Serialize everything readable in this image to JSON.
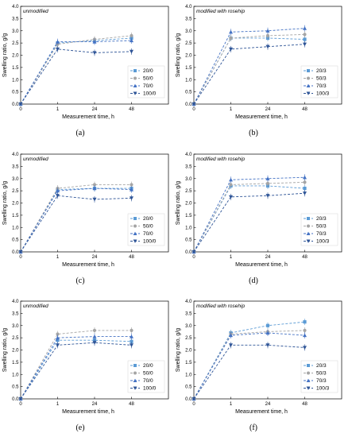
{
  "figure": {
    "panels": [
      {
        "letter": "(a)",
        "annotation": "unmodified"
      },
      {
        "letter": "(b)",
        "annotation": "modified with rosehip"
      },
      {
        "letter": "(c)",
        "annotation": "unmodified"
      },
      {
        "letter": "(d)",
        "annotation": "modified with rosehip"
      },
      {
        "letter": "(e)",
        "annotation": "unmodified"
      },
      {
        "letter": "(f)",
        "annotation": "modified with rosehip"
      }
    ]
  },
  "colors": {
    "s1": "#5b9bd5",
    "s2": "#a5a5a5",
    "s3": "#4472c4",
    "s4": "#2f5597",
    "axis": "#000000"
  },
  "markers": [
    "square",
    "circle",
    "triangle-up",
    "triangle-down"
  ],
  "chart_data": [
    {
      "type": "line",
      "annotation": "unmodified",
      "x": [
        0,
        1,
        24,
        48
      ],
      "x_tick_labels": [
        "0",
        "1",
        "24",
        "48"
      ],
      "y_tick_labels": [
        "0.0",
        "0.5",
        "1.0",
        "1.5",
        "2.0",
        "2.5",
        "3.0",
        "3.5",
        "4.0"
      ],
      "xlabel": "Measurement time, h",
      "ylabel": "Swelling ratio, g/g",
      "ylim": [
        0,
        4
      ],
      "legend": "right",
      "series": [
        {
          "name": "20/0",
          "values": [
            0,
            2.5,
            2.6,
            2.7
          ]
        },
        {
          "name": "50/0",
          "values": [
            0,
            2.45,
            2.65,
            2.8
          ]
        },
        {
          "name": "70/0",
          "values": [
            0,
            2.55,
            2.55,
            2.6
          ]
        },
        {
          "name": "100/0",
          "values": [
            0,
            2.25,
            2.1,
            2.15
          ]
        }
      ]
    },
    {
      "type": "line",
      "annotation": "modified with rosehip",
      "x": [
        0,
        1,
        24,
        48
      ],
      "x_tick_labels": [
        "0",
        "1",
        "24",
        "48"
      ],
      "y_tick_labels": [
        "0.0",
        "0.5",
        "1.0",
        "1.5",
        "2.0",
        "2.5",
        "3.0",
        "3.5",
        "4.0"
      ],
      "xlabel": "Measurement time, h",
      "ylabel": "Swelling ratio, g/g",
      "ylim": [
        0,
        4
      ],
      "legend": "right",
      "series": [
        {
          "name": "20/3",
          "values": [
            0,
            2.7,
            2.7,
            2.65
          ]
        },
        {
          "name": "50/3",
          "values": [
            0,
            2.7,
            2.8,
            2.85
          ]
        },
        {
          "name": "70/3",
          "values": [
            0,
            2.95,
            3.0,
            3.1
          ]
        },
        {
          "name": "100/3",
          "values": [
            0,
            2.25,
            2.35,
            2.45
          ]
        }
      ]
    },
    {
      "type": "line",
      "annotation": "unmodified",
      "x": [
        0,
        1,
        24,
        48
      ],
      "x_tick_labels": [
        "0",
        "1",
        "24",
        "48"
      ],
      "y_tick_labels": [
        "0.0",
        "0.5",
        "1.0",
        "1.5",
        "2.0",
        "2.5",
        "3.0",
        "3.5",
        "4.0"
      ],
      "xlabel": "Measurement time, h",
      "ylabel": "Swelling ratio, g/g",
      "ylim": [
        0,
        4
      ],
      "legend": "right",
      "series": [
        {
          "name": "20/0",
          "values": [
            0,
            2.55,
            2.6,
            2.6
          ]
        },
        {
          "name": "50/0",
          "values": [
            0,
            2.6,
            2.75,
            2.75
          ]
        },
        {
          "name": "70/0",
          "values": [
            0,
            2.5,
            2.6,
            2.55
          ]
        },
        {
          "name": "100/0",
          "values": [
            0,
            2.3,
            2.15,
            2.2
          ]
        }
      ]
    },
    {
      "type": "line",
      "annotation": "modified with rosehip",
      "x": [
        0,
        1,
        24,
        48
      ],
      "x_tick_labels": [
        "0",
        "1",
        "24",
        "48"
      ],
      "y_tick_labels": [
        "0.0",
        "0.5",
        "1.0",
        "1.5",
        "2.0",
        "2.5",
        "3.0",
        "3.5",
        "4.0"
      ],
      "xlabel": "Measurement time, h",
      "ylabel": "Swelling ratio, g/g",
      "ylim": [
        0,
        4
      ],
      "legend": "right",
      "series": [
        {
          "name": "20/3",
          "values": [
            0,
            2.7,
            2.7,
            2.6
          ]
        },
        {
          "name": "50/3",
          "values": [
            0,
            2.75,
            2.8,
            2.85
          ]
        },
        {
          "name": "70/3",
          "values": [
            0,
            2.95,
            3.0,
            3.05
          ]
        },
        {
          "name": "100/3",
          "values": [
            0,
            2.25,
            2.3,
            2.4
          ]
        }
      ]
    },
    {
      "type": "line",
      "annotation": "unmodified",
      "x": [
        0,
        1,
        24,
        48
      ],
      "x_tick_labels": [
        "0",
        "1",
        "24",
        "48"
      ],
      "y_tick_labels": [
        "0.0",
        "0.5",
        "1.0",
        "1.5",
        "2.0",
        "2.5",
        "3.0",
        "3.5",
        "4.0"
      ],
      "xlabel": "Measurement time, h",
      "ylabel": "Swelling ratio, g/g",
      "ylim": [
        0,
        4
      ],
      "legend": "right",
      "series": [
        {
          "name": "20/0",
          "values": [
            0,
            2.4,
            2.4,
            2.35
          ]
        },
        {
          "name": "50/0",
          "values": [
            0,
            2.65,
            2.8,
            2.8
          ]
        },
        {
          "name": "70/0",
          "values": [
            0,
            2.5,
            2.55,
            2.55
          ]
        },
        {
          "name": "100/0",
          "values": [
            0,
            2.2,
            2.3,
            2.2
          ]
        }
      ]
    },
    {
      "type": "line",
      "annotation": "modified with rosehip",
      "x": [
        0,
        1,
        24,
        48
      ],
      "x_tick_labels": [
        "0",
        "1",
        "24",
        "48"
      ],
      "y_tick_labels": [
        "0.0",
        "0.5",
        "1.0",
        "1.5",
        "2.0",
        "2.5",
        "3.0",
        "3.5",
        "4.0"
      ],
      "xlabel": "Measurement time, h",
      "ylabel": "Swelling ratio, g/g",
      "ylim": [
        0,
        4
      ],
      "legend": "right",
      "series": [
        {
          "name": "20/3",
          "values": [
            0,
            2.7,
            3.0,
            3.15
          ]
        },
        {
          "name": "50/3",
          "values": [
            0,
            2.65,
            2.75,
            2.8
          ]
        },
        {
          "name": "70/3",
          "values": [
            0,
            2.6,
            2.7,
            2.6
          ]
        },
        {
          "name": "100/3",
          "values": [
            0,
            2.2,
            2.2,
            2.1
          ]
        }
      ]
    }
  ]
}
